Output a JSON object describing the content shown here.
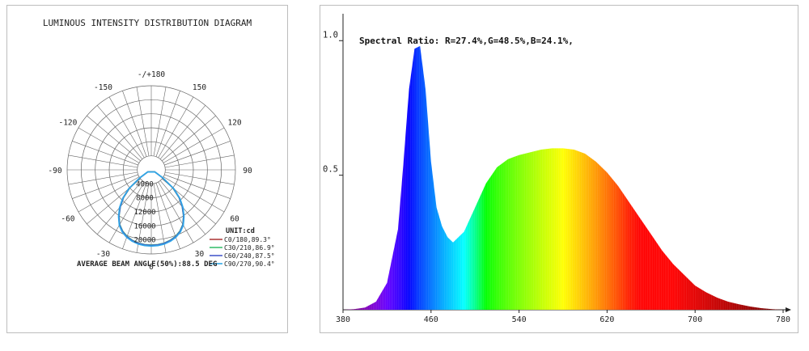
{
  "chart_data": [
    {
      "type": "polar",
      "title": "LUMINOUS INTENSITY DISTRIBUTION DIAGRAM",
      "angle_labels": [
        {
          "text": "-/+180",
          "angle": 180
        },
        {
          "text": "150",
          "angle": 150
        },
        {
          "text": "-150",
          "angle": -150
        },
        {
          "text": "120",
          "angle": 120
        },
        {
          "text": "-120",
          "angle": -120
        },
        {
          "text": "90",
          "angle": 90
        },
        {
          "text": "-90",
          "angle": -90
        },
        {
          "text": "60",
          "angle": 60
        },
        {
          "text": "-60",
          "angle": -60
        },
        {
          "text": "30",
          "angle": 30
        },
        {
          "text": "-30",
          "angle": -30
        },
        {
          "text": "0",
          "angle": 0
        }
      ],
      "radial_labels": [
        "4000",
        "8000",
        "12000",
        "16000",
        "20000"
      ],
      "rmax": 24000,
      "unit_label": "UNIT:cd",
      "series": [
        {
          "name": "C0/180,89.3°",
          "color": "#b04040",
          "angles": [
            -60,
            -55,
            -50,
            -45,
            -40,
            -35,
            -30,
            -25,
            -20,
            -15,
            -10,
            -5,
            0,
            5,
            10,
            15,
            20,
            25,
            30,
            35,
            40,
            45,
            50,
            55,
            60
          ],
          "values": [
            1200,
            4000,
            8400,
            11500,
            14000,
            16200,
            18200,
            19500,
            20400,
            21000,
            21400,
            21600,
            21650,
            21600,
            21400,
            21000,
            20400,
            19500,
            18200,
            16200,
            14000,
            11500,
            8400,
            4000,
            1200
          ]
        },
        {
          "name": "C30/210,86.9°",
          "color": "#3cc070",
          "angles": [
            -60,
            -55,
            -50,
            -45,
            -40,
            -35,
            -30,
            -25,
            -20,
            -15,
            -10,
            -5,
            0,
            5,
            10,
            15,
            20,
            25,
            30,
            35,
            40,
            45,
            50,
            55,
            60
          ],
          "values": [
            1100,
            3800,
            8000,
            11200,
            13700,
            16000,
            18000,
            19300,
            20200,
            20800,
            21200,
            21400,
            21450,
            21400,
            21200,
            20800,
            20200,
            19300,
            18000,
            16000,
            13700,
            11200,
            8000,
            3800,
            1100
          ]
        },
        {
          "name": "C60/240,87.5°",
          "color": "#4a5ccc",
          "angles": [
            -60,
            -55,
            -50,
            -45,
            -40,
            -35,
            -30,
            -25,
            -20,
            -15,
            -10,
            -5,
            0,
            5,
            10,
            15,
            20,
            25,
            30,
            35,
            40,
            45,
            50,
            55,
            60
          ],
          "values": [
            1150,
            3900,
            8200,
            11300,
            13800,
            16100,
            18100,
            19400,
            20300,
            20900,
            21300,
            21500,
            21550,
            21500,
            21300,
            20900,
            20300,
            19400,
            18100,
            16100,
            13800,
            11300,
            8200,
            3900,
            1150
          ]
        },
        {
          "name": "C90/270,90.4°",
          "color": "#30a8e8",
          "angles": [
            -60,
            -55,
            -50,
            -45,
            -40,
            -35,
            -30,
            -25,
            -20,
            -15,
            -10,
            -5,
            0,
            5,
            10,
            15,
            20,
            25,
            30,
            35,
            40,
            45,
            50,
            55,
            60
          ],
          "values": [
            1250,
            4100,
            8500,
            11600,
            14100,
            16300,
            18300,
            19600,
            20500,
            21100,
            21500,
            21700,
            21750,
            21700,
            21500,
            21100,
            20500,
            19600,
            18300,
            16300,
            14100,
            11600,
            8500,
            4100,
            1250
          ]
        }
      ],
      "footer": "AVERAGE BEAM ANGLE(50%):88.5 DEG"
    },
    {
      "type": "area",
      "title": "Spectral Ratio:  R=27.4%,G=48.5%,B=24.1%,",
      "xlim": [
        380,
        780
      ],
      "ylim": [
        0,
        1.1
      ],
      "xticks": [
        "380",
        "460",
        "540",
        "620",
        "700",
        "780"
      ],
      "yticks": [
        "1.0",
        "0.5"
      ],
      "x": [
        380,
        390,
        400,
        410,
        420,
        430,
        435,
        440,
        445,
        450,
        455,
        460,
        465,
        470,
        475,
        480,
        490,
        500,
        510,
        520,
        530,
        540,
        550,
        560,
        570,
        580,
        590,
        600,
        610,
        620,
        630,
        640,
        650,
        660,
        670,
        680,
        690,
        700,
        710,
        720,
        730,
        740,
        750,
        760,
        770,
        780
      ],
      "y": [
        0,
        0.002,
        0.008,
        0.03,
        0.1,
        0.3,
        0.55,
        0.82,
        0.97,
        0.98,
        0.82,
        0.55,
        0.38,
        0.31,
        0.27,
        0.25,
        0.29,
        0.38,
        0.47,
        0.53,
        0.56,
        0.575,
        0.585,
        0.595,
        0.6,
        0.6,
        0.595,
        0.58,
        0.55,
        0.51,
        0.46,
        0.4,
        0.34,
        0.28,
        0.22,
        0.17,
        0.13,
        0.09,
        0.065,
        0.045,
        0.03,
        0.02,
        0.012,
        0.006,
        0.002,
        0
      ]
    }
  ]
}
